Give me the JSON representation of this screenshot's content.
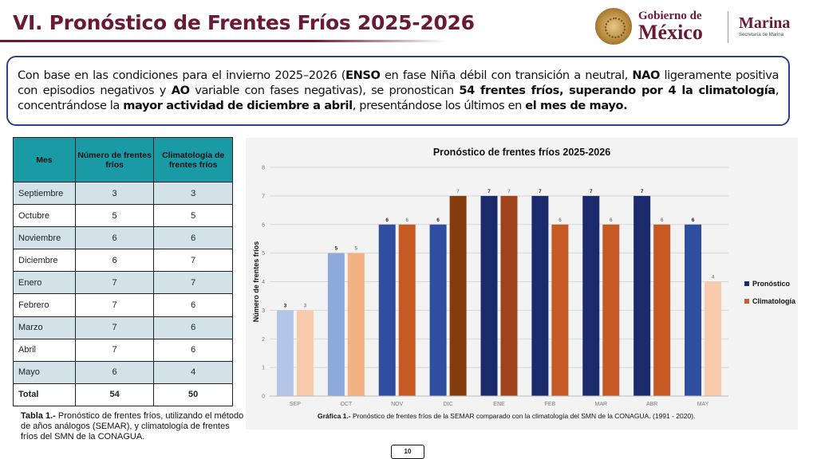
{
  "header": {
    "title": "VI. Pronóstico de Frentes Fríos 2025-2026",
    "logo_line1": "Gobierno de",
    "logo_line2": "México",
    "marina_line1": "Marina",
    "marina_line2": "Secretaría de Marina"
  },
  "intro": {
    "p1": "Con base en las condiciones para el invierno 2025–2026 (",
    "b1": "ENSO",
    "p2": " en fase Niña débil con transición a neutral, ",
    "b2": "NAO",
    "p3": " ligeramente positiva con episodios negativos y ",
    "b3": "AO",
    "p4": " variable con fases negativas), se pronostican ",
    "b4": "54 frentes fríos, superando por 4 la climatología",
    "p5": ", concentrándose la ",
    "b5": "mayor actividad de diciembre a abril",
    "p6": ", presentándose los últimos en ",
    "b6": "el mes de mayo."
  },
  "table": {
    "headers": [
      "Mes",
      "Número de frentes fríos",
      "Climatología de frentes fríos"
    ],
    "rows": [
      {
        "mes": "Septiembre",
        "pron": "3",
        "clim": "3"
      },
      {
        "mes": "Octubre",
        "pron": "5",
        "clim": "5"
      },
      {
        "mes": "Noviembre",
        "pron": "6",
        "clim": "6"
      },
      {
        "mes": "Diciembre",
        "pron": "6",
        "clim": "7"
      },
      {
        "mes": "Enero",
        "pron": "7",
        "clim": "7"
      },
      {
        "mes": "Febrero",
        "pron": "7",
        "clim": "6"
      },
      {
        "mes": "Marzo",
        "pron": "7",
        "clim": "6"
      },
      {
        "mes": "Abril",
        "pron": "7",
        "clim": "6"
      },
      {
        "mes": "Mayo",
        "pron": "6",
        "clim": "4"
      }
    ],
    "total": {
      "mes": "Total",
      "pron": "54",
      "clim": "50"
    },
    "caption_bold": "Tabla 1.-",
    "caption_text": " Pronóstico de frentes fríos, utilizando el método de años análogos (SEMAR), y climatología de frentes fríos del SMN de la CONAGUA."
  },
  "chart_data": {
    "type": "bar",
    "title": "Pronóstico de frentes fríos  2025-2026",
    "xlabel": "",
    "ylabel": "Número de frentes fríos",
    "ylim": [
      0,
      8
    ],
    "yticks": [
      "0",
      "1",
      "2",
      "3",
      "4",
      "5",
      "6",
      "7",
      "8"
    ],
    "categories": [
      "SEP",
      "OCT",
      "NOV",
      "DIC",
      "ENE",
      "FEB",
      "MAR",
      "ABR",
      "MAY"
    ],
    "series": [
      {
        "name": "Pronóstico",
        "values": [
          3,
          5,
          6,
          6,
          7,
          7,
          7,
          7,
          6
        ],
        "legend_color": "#1b2a6b",
        "colors": [
          "#b4c6e7",
          "#8ea9db",
          "#2f4ea0",
          "#2f4ea0",
          "#1b2a6b",
          "#1b2a6b",
          "#1b2a6b",
          "#1b2a6b",
          "#2f4ea0"
        ]
      },
      {
        "name": "Climatología",
        "values": [
          3,
          5,
          6,
          7,
          7,
          6,
          6,
          6,
          4
        ],
        "legend_color": "#c0602a",
        "colors": [
          "#f8cbad",
          "#f4b183",
          "#c55a24",
          "#843c0c",
          "#a0421a",
          "#c55a24",
          "#c55a24",
          "#c55a24",
          "#f8cbad"
        ]
      }
    ],
    "grid": true,
    "legend": "right",
    "caption_bold": "Gráfica 1.-",
    "caption_text": " Pronóstico de frentes fríos de la SEMAR comparado con la climatología del SMN de la CONAGUA. (1991 - 2020)."
  },
  "page_number": "10"
}
